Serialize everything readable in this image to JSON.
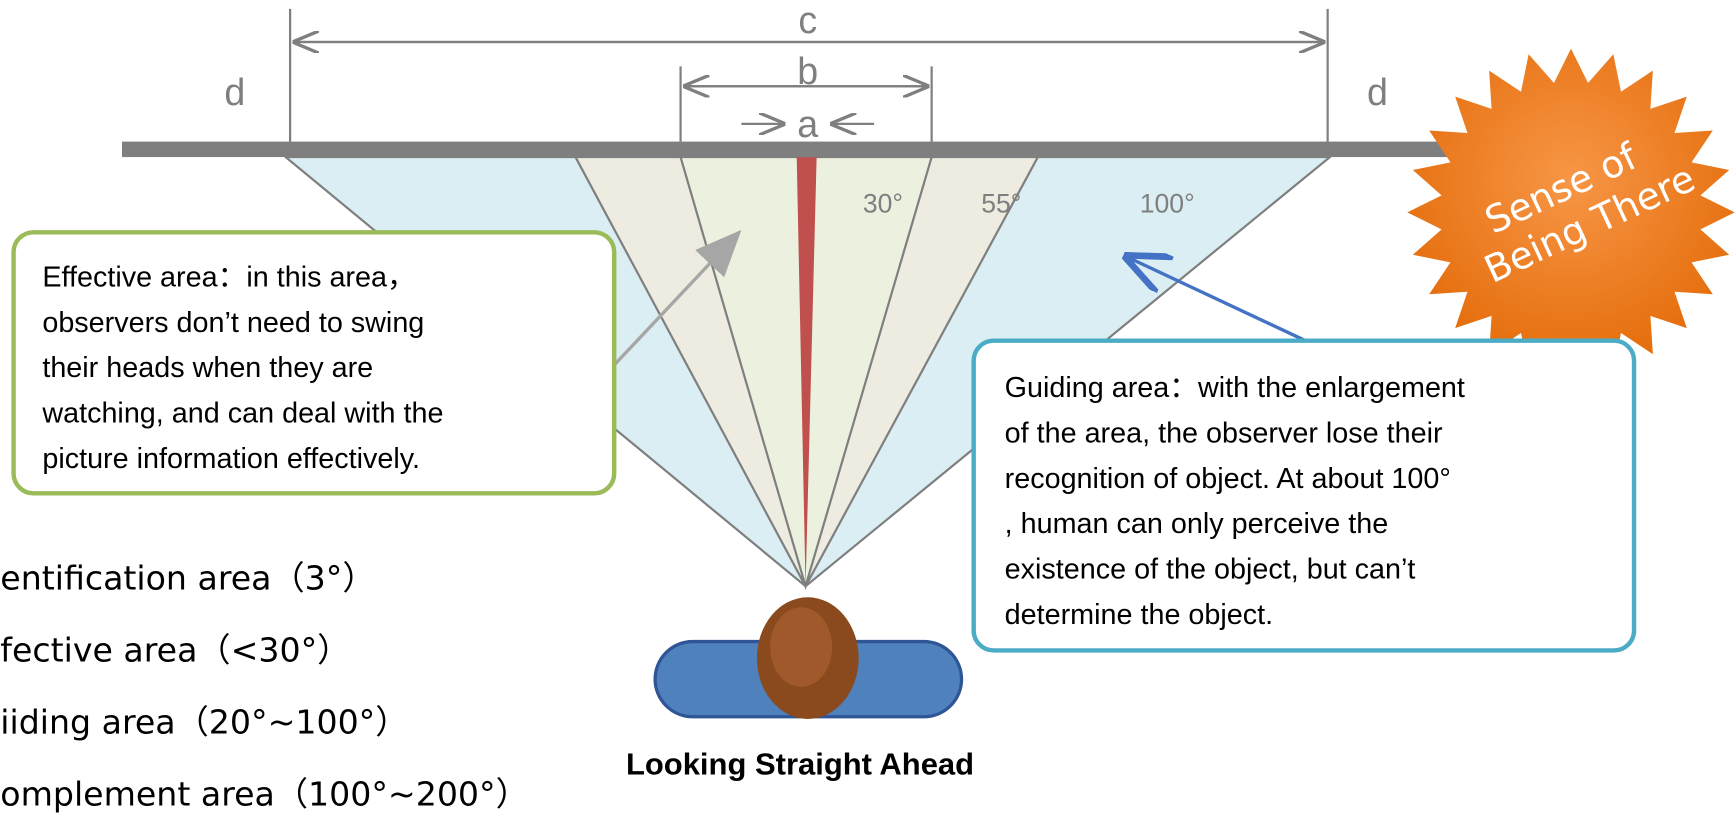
{
  "dimensions": {
    "c": "c",
    "b": "b",
    "a": "a",
    "d_left": "d",
    "d_right": "d"
  },
  "angles": [
    "30°",
    "55°",
    "100°"
  ],
  "effective_callout": [
    "Effective area：in this area，",
    "observers don’t need to swing",
    "their heads when they are",
    "watching, and can deal with the",
    "picture information effectively."
  ],
  "guiding_callout": [
    "Guiding area：with the enlargement",
    "of the area, the observer lose their",
    "recognition of  object. At about 100°",
    ", human can only perceive the",
    "existence of the object, but can’t",
    "determine the object."
  ],
  "badge": [
    "Sense of",
    "Being There"
  ],
  "caption": "Looking Straight Ahead",
  "areas": [
    "entification area（3°）",
    "fective area（<30°）",
    "iiding area（20°~100°）",
    "omplement area（100°~200°）"
  ]
}
